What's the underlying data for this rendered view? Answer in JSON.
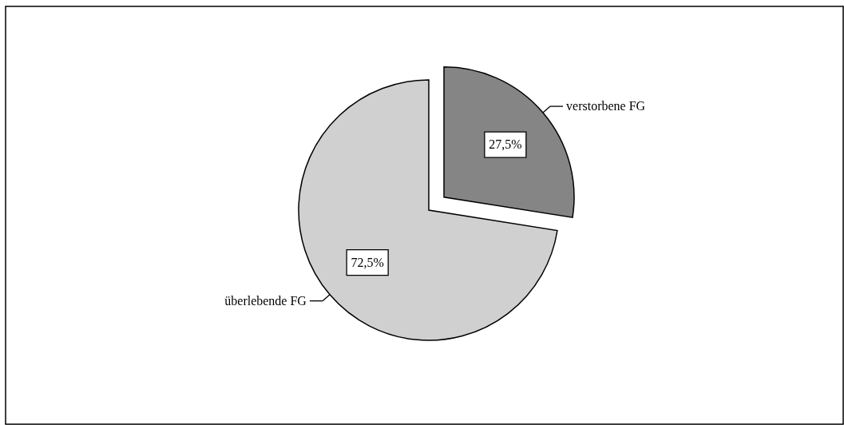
{
  "chart_data": {
    "type": "pie",
    "categories": [
      "verstorbene FG",
      "überlebende FG"
    ],
    "values": [
      27.5,
      72.5
    ],
    "colors": [
      "#858585",
      "#d0d0d0"
    ],
    "value_labels": [
      "27,5%",
      "72,5%"
    ]
  }
}
